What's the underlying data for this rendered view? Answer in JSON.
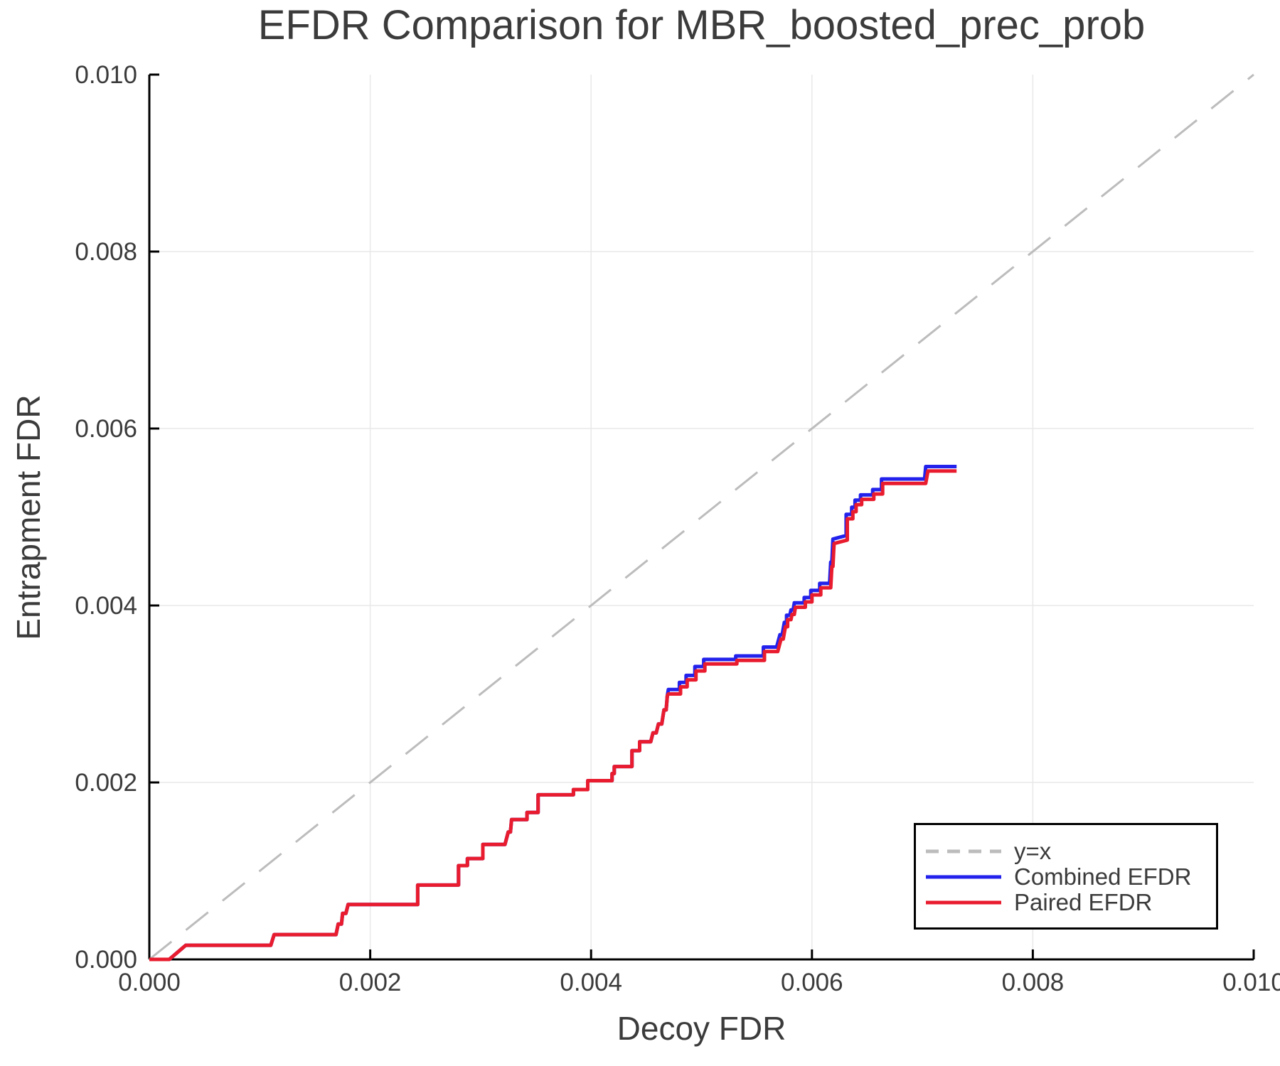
{
  "chart_data": {
    "type": "line",
    "title": "EFDR Comparison for MBR_boosted_prec_prob",
    "xlabel": "Decoy FDR",
    "ylabel": "Entrapment FDR",
    "xlim": [
      0.0,
      0.01
    ],
    "ylim": [
      0.0,
      0.01
    ],
    "xticks": [
      0.0,
      0.002,
      0.004,
      0.006,
      0.008,
      0.01
    ],
    "yticks": [
      0.0,
      0.002,
      0.004,
      0.006,
      0.008,
      0.01
    ],
    "tick_decimals": 3,
    "grid": true,
    "legend_position": "lower-right",
    "colors": {
      "text": "#3b3b3b",
      "axis": "#000000",
      "grid": "#e8e8e8",
      "identity": "#bcbcbc",
      "combined": "#2222ec",
      "paired": "#e81c2e"
    },
    "series": [
      {
        "name": "y=x",
        "style": "dashed",
        "color": "#bcbcbc",
        "points": [
          [
            0.0,
            0.0
          ],
          [
            0.01,
            0.01
          ]
        ]
      },
      {
        "name": "Combined EFDR",
        "style": "solid",
        "color": "#2222ec",
        "points": [
          [
            0.0,
            0.0
          ],
          [
            0.00018,
            0.0
          ],
          [
            0.00033,
            0.00016
          ],
          [
            0.0011,
            0.00016
          ],
          [
            0.00113,
            0.00028
          ],
          [
            0.00169,
            0.00028
          ],
          [
            0.00171,
            0.0004
          ],
          [
            0.00174,
            0.0004
          ],
          [
            0.00175,
            0.00052
          ],
          [
            0.00178,
            0.00052
          ],
          [
            0.0018,
            0.00062
          ],
          [
            0.00243,
            0.00062
          ],
          [
            0.00243,
            0.00084
          ],
          [
            0.0028,
            0.00084
          ],
          [
            0.0028,
            0.00106
          ],
          [
            0.00288,
            0.00106
          ],
          [
            0.00288,
            0.00114
          ],
          [
            0.00302,
            0.00114
          ],
          [
            0.00302,
            0.0013
          ],
          [
            0.00322,
            0.0013
          ],
          [
            0.00325,
            0.00144
          ],
          [
            0.00327,
            0.00144
          ],
          [
            0.00328,
            0.00158
          ],
          [
            0.00342,
            0.00158
          ],
          [
            0.00342,
            0.00166
          ],
          [
            0.00352,
            0.00166
          ],
          [
            0.00352,
            0.00186
          ],
          [
            0.00384,
            0.00186
          ],
          [
            0.00384,
            0.00192
          ],
          [
            0.00397,
            0.00192
          ],
          [
            0.00397,
            0.00202
          ],
          [
            0.00419,
            0.00202
          ],
          [
            0.00419,
            0.0021
          ],
          [
            0.00421,
            0.0021
          ],
          [
            0.00421,
            0.00218
          ],
          [
            0.00437,
            0.00218
          ],
          [
            0.00437,
            0.00236
          ],
          [
            0.00444,
            0.00236
          ],
          [
            0.00444,
            0.00246
          ],
          [
            0.00454,
            0.00246
          ],
          [
            0.00456,
            0.00256
          ],
          [
            0.00459,
            0.00256
          ],
          [
            0.00461,
            0.00266
          ],
          [
            0.00464,
            0.00266
          ],
          [
            0.00466,
            0.00282
          ],
          [
            0.00468,
            0.00282
          ],
          [
            0.00469,
            0.00298
          ],
          [
            0.0047,
            0.00305
          ],
          [
            0.0048,
            0.00305
          ],
          [
            0.0048,
            0.00313
          ],
          [
            0.00486,
            0.00313
          ],
          [
            0.00486,
            0.00321
          ],
          [
            0.00494,
            0.00321
          ],
          [
            0.00494,
            0.00331
          ],
          [
            0.00502,
            0.00331
          ],
          [
            0.00502,
            0.00339
          ],
          [
            0.00531,
            0.00339
          ],
          [
            0.00531,
            0.00343
          ],
          [
            0.00556,
            0.00343
          ],
          [
            0.00556,
            0.00353
          ],
          [
            0.00568,
            0.00353
          ],
          [
            0.00571,
            0.00367
          ],
          [
            0.00573,
            0.00367
          ],
          [
            0.00575,
            0.00381
          ],
          [
            0.00577,
            0.00381
          ],
          [
            0.00577,
            0.00389
          ],
          [
            0.0058,
            0.00389
          ],
          [
            0.00581,
            0.00395
          ],
          [
            0.00583,
            0.00395
          ],
          [
            0.00584,
            0.00403
          ],
          [
            0.00593,
            0.00403
          ],
          [
            0.00593,
            0.00409
          ],
          [
            0.00599,
            0.00409
          ],
          [
            0.00599,
            0.00417
          ],
          [
            0.00607,
            0.00417
          ],
          [
            0.00607,
            0.00425
          ],
          [
            0.00616,
            0.00425
          ],
          [
            0.00617,
            0.00449
          ],
          [
            0.00618,
            0.00449
          ],
          [
            0.00619,
            0.00475
          ],
          [
            0.00631,
            0.00479
          ],
          [
            0.00631,
            0.00503
          ],
          [
            0.00636,
            0.00503
          ],
          [
            0.00636,
            0.00511
          ],
          [
            0.00639,
            0.00511
          ],
          [
            0.00639,
            0.00519
          ],
          [
            0.00644,
            0.00519
          ],
          [
            0.00644,
            0.00525
          ],
          [
            0.00655,
            0.00525
          ],
          [
            0.00655,
            0.00531
          ],
          [
            0.00663,
            0.00531
          ],
          [
            0.00663,
            0.00543
          ],
          [
            0.00702,
            0.00543
          ],
          [
            0.00703,
            0.00557
          ],
          [
            0.00731,
            0.00557
          ]
        ]
      },
      {
        "name": "Paired EFDR",
        "style": "solid",
        "color": "#e81c2e",
        "points": [
          [
            0.0,
            0.0
          ],
          [
            0.00018,
            0.0
          ],
          [
            0.00033,
            0.00016
          ],
          [
            0.0011,
            0.00016
          ],
          [
            0.00113,
            0.00028
          ],
          [
            0.00169,
            0.00028
          ],
          [
            0.00171,
            0.0004
          ],
          [
            0.00174,
            0.0004
          ],
          [
            0.00175,
            0.00052
          ],
          [
            0.00178,
            0.00052
          ],
          [
            0.0018,
            0.00062
          ],
          [
            0.00243,
            0.00062
          ],
          [
            0.00243,
            0.00084
          ],
          [
            0.0028,
            0.00084
          ],
          [
            0.0028,
            0.00106
          ],
          [
            0.00288,
            0.00106
          ],
          [
            0.00288,
            0.00114
          ],
          [
            0.00302,
            0.00114
          ],
          [
            0.00302,
            0.0013
          ],
          [
            0.00322,
            0.0013
          ],
          [
            0.00325,
            0.00144
          ],
          [
            0.00327,
            0.00144
          ],
          [
            0.00328,
            0.00158
          ],
          [
            0.00342,
            0.00158
          ],
          [
            0.00342,
            0.00166
          ],
          [
            0.00352,
            0.00166
          ],
          [
            0.00352,
            0.00186
          ],
          [
            0.00384,
            0.00186
          ],
          [
            0.00384,
            0.00192
          ],
          [
            0.00397,
            0.00192
          ],
          [
            0.00397,
            0.00202
          ],
          [
            0.00419,
            0.00202
          ],
          [
            0.00419,
            0.0021
          ],
          [
            0.00421,
            0.0021
          ],
          [
            0.00421,
            0.00218
          ],
          [
            0.00437,
            0.00218
          ],
          [
            0.00437,
            0.00236
          ],
          [
            0.00444,
            0.00236
          ],
          [
            0.00444,
            0.00246
          ],
          [
            0.00454,
            0.00246
          ],
          [
            0.00456,
            0.00256
          ],
          [
            0.00459,
            0.00256
          ],
          [
            0.00461,
            0.00266
          ],
          [
            0.00464,
            0.00266
          ],
          [
            0.00466,
            0.00282
          ],
          [
            0.00468,
            0.00282
          ],
          [
            0.00469,
            0.00298
          ],
          [
            0.0047,
            0.003
          ],
          [
            0.00481,
            0.003
          ],
          [
            0.00481,
            0.00308
          ],
          [
            0.00487,
            0.00308
          ],
          [
            0.00487,
            0.00316
          ],
          [
            0.00495,
            0.00316
          ],
          [
            0.00495,
            0.00326
          ],
          [
            0.00503,
            0.00326
          ],
          [
            0.00503,
            0.00334
          ],
          [
            0.00532,
            0.00334
          ],
          [
            0.00532,
            0.00338
          ],
          [
            0.00557,
            0.00338
          ],
          [
            0.00557,
            0.00348
          ],
          [
            0.00569,
            0.00348
          ],
          [
            0.00572,
            0.00362
          ],
          [
            0.00574,
            0.00362
          ],
          [
            0.00576,
            0.00376
          ],
          [
            0.00578,
            0.00376
          ],
          [
            0.00578,
            0.00384
          ],
          [
            0.00581,
            0.00384
          ],
          [
            0.00582,
            0.0039
          ],
          [
            0.00584,
            0.0039
          ],
          [
            0.00585,
            0.00398
          ],
          [
            0.00594,
            0.00398
          ],
          [
            0.00594,
            0.00404
          ],
          [
            0.006,
            0.00404
          ],
          [
            0.006,
            0.00412
          ],
          [
            0.00608,
            0.00412
          ],
          [
            0.00608,
            0.0042
          ],
          [
            0.00617,
            0.0042
          ],
          [
            0.00618,
            0.00444
          ],
          [
            0.00619,
            0.00444
          ],
          [
            0.0062,
            0.0047
          ],
          [
            0.00632,
            0.00474
          ],
          [
            0.00632,
            0.00498
          ],
          [
            0.00637,
            0.00498
          ],
          [
            0.00637,
            0.00506
          ],
          [
            0.0064,
            0.00506
          ],
          [
            0.0064,
            0.00514
          ],
          [
            0.00645,
            0.00514
          ],
          [
            0.00645,
            0.0052
          ],
          [
            0.00656,
            0.0052
          ],
          [
            0.00656,
            0.00526
          ],
          [
            0.00664,
            0.00526
          ],
          [
            0.00664,
            0.00538
          ],
          [
            0.00703,
            0.00538
          ],
          [
            0.00705,
            0.00552
          ],
          [
            0.00731,
            0.00552
          ]
        ]
      }
    ]
  }
}
